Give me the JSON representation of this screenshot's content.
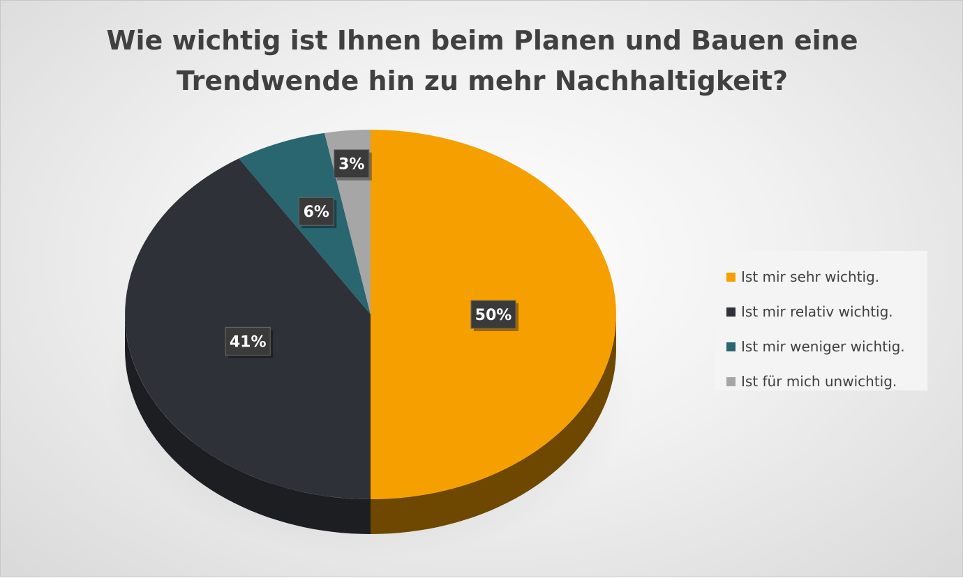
{
  "chart_data": {
    "type": "pie",
    "title_lines": [
      "Wie wichtig ist Ihnen beim Planen und Bauen eine",
      "Trendwende hin zu mehr Nachhaltigkeit?"
    ],
    "style": "3d",
    "legend_position": "right",
    "slices": [
      {
        "label": "Ist mir sehr wichtig.",
        "value": 50,
        "display": "50%",
        "color": "#f5a000"
      },
      {
        "label": "Ist mir relativ wichtig.",
        "value": 41,
        "display": "41%",
        "color": "#2e3238"
      },
      {
        "label": "Ist mir weniger wichtig.",
        "value": 6,
        "display": "6%",
        "color": "#2a6670"
      },
      {
        "label": "Ist für mich unwichtig.",
        "value": 3,
        "display": "3%",
        "color": "#a6a6a6"
      }
    ]
  }
}
